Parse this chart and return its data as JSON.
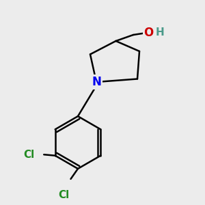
{
  "background_color": "#ececec",
  "bond_color": "#000000",
  "bond_width": 1.8,
  "atom_N": {
    "symbol": "N",
    "color": "#0000ee"
  },
  "atom_O": {
    "symbol": "O",
    "color": "#cc0000"
  },
  "atom_Cl": {
    "symbol": "Cl",
    "color": "#228b22"
  },
  "atom_H": {
    "symbol": "H",
    "color": "#333333"
  },
  "figsize": [
    3.0,
    3.0
  ],
  "dpi": 100,
  "xlim": [
    0,
    10
  ],
  "ylim": [
    0,
    10
  ]
}
